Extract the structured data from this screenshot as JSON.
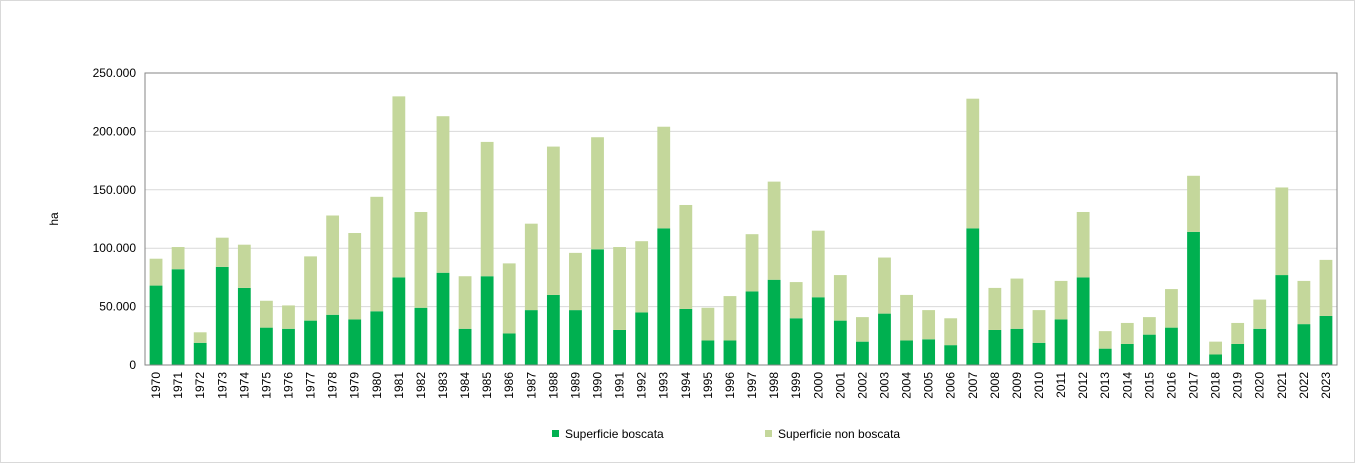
{
  "colors": {
    "boscata": "#00b050",
    "non_boscata": "#c4d79b",
    "grid": "#d9d9d9",
    "plot_border": "#868686"
  },
  "chart_data": {
    "type": "bar",
    "stacked": true,
    "ylabel": "ha",
    "ylim": [
      0,
      250000
    ],
    "yticks": [
      0,
      50000,
      100000,
      150000,
      200000,
      250000
    ],
    "ytick_labels": [
      "0",
      "50.000",
      "100.000",
      "150.000",
      "200.000",
      "250.000"
    ],
    "grid": true,
    "legend_position": "bottom",
    "categories": [
      "1970",
      "1971",
      "1972",
      "1973",
      "1974",
      "1975",
      "1976",
      "1977",
      "1978",
      "1979",
      "1980",
      "1981",
      "1982",
      "1983",
      "1984",
      "1985",
      "1986",
      "1987",
      "1988",
      "1989",
      "1990",
      "1991",
      "1992",
      "1993",
      "1994",
      "1995",
      "1996",
      "1997",
      "1998",
      "1999",
      "2000",
      "2001",
      "2002",
      "2003",
      "2004",
      "2005",
      "2006",
      "2007",
      "2008",
      "2009",
      "2010",
      "2011",
      "2012",
      "2013",
      "2014",
      "2015",
      "2016",
      "2017",
      "2018",
      "2019",
      "2020",
      "2021",
      "2022",
      "2023"
    ],
    "series": [
      {
        "name": "Superficie boscata",
        "color": "#00b050",
        "values": [
          68000,
          82000,
          19000,
          84000,
          66000,
          32000,
          31000,
          38000,
          43000,
          39000,
          46000,
          75000,
          49000,
          79000,
          31000,
          76000,
          27000,
          47000,
          60000,
          47000,
          99000,
          30000,
          45000,
          117000,
          48000,
          21000,
          21000,
          63000,
          73000,
          40000,
          58000,
          38000,
          20000,
          44000,
          21000,
          22000,
          17000,
          117000,
          30000,
          31000,
          19000,
          39000,
          75000,
          14000,
          18000,
          26000,
          32000,
          114000,
          9000,
          18000,
          31000,
          77000,
          35000,
          42000
        ]
      },
      {
        "name": "Superficie non boscata",
        "color": "#c4d79b",
        "values": [
          23000,
          19000,
          9000,
          25000,
          37000,
          23000,
          20000,
          55000,
          85000,
          74000,
          98000,
          155000,
          82000,
          134000,
          45000,
          115000,
          60000,
          74000,
          127000,
          49000,
          96000,
          71000,
          61000,
          87000,
          89000,
          28000,
          38000,
          49000,
          84000,
          31000,
          57000,
          39000,
          21000,
          48000,
          39000,
          25000,
          23000,
          111000,
          36000,
          43000,
          28000,
          33000,
          56000,
          15000,
          18000,
          15000,
          33000,
          48000,
          11000,
          18000,
          25000,
          75000,
          37000,
          48000
        ]
      }
    ]
  }
}
